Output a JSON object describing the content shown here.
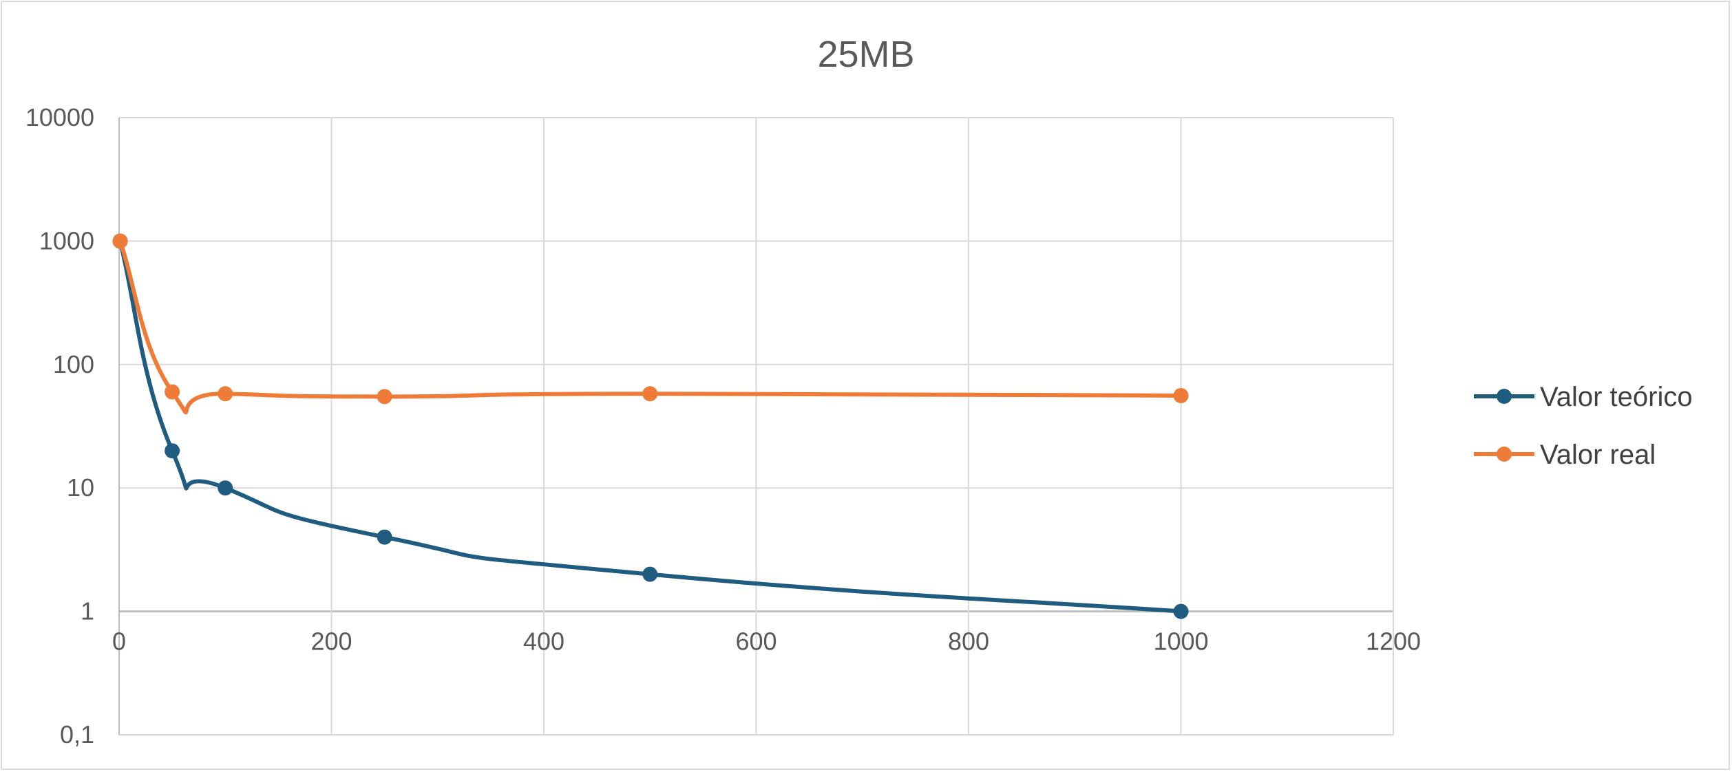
{
  "chart_data": {
    "type": "line",
    "title": "25MB",
    "xlabel": "",
    "ylabel": "",
    "x_scale": "linear",
    "y_scale": "log",
    "xlim": [
      0,
      1200
    ],
    "ylim": [
      0.1,
      10000
    ],
    "x_ticks": [
      "0",
      "200",
      "400",
      "600",
      "800",
      "1000",
      "1200"
    ],
    "y_ticks": [
      "0,1",
      "1",
      "10",
      "100",
      "1000",
      "10000"
    ],
    "grid": true,
    "legend_position": "right",
    "x": [
      1,
      50,
      100,
      250,
      500,
      1000
    ],
    "series": [
      {
        "name": "Valor teórico",
        "color": "#1f5c80",
        "values": [
          1000,
          20,
          10,
          4,
          2,
          1
        ]
      },
      {
        "name": "Valor real",
        "color": "#ee7b37",
        "values": [
          1000,
          60,
          58,
          55,
          58,
          56
        ]
      }
    ]
  },
  "colors": {
    "grid": "#d9d9d9",
    "axis": "#bfbfbf",
    "text": "#595959"
  }
}
